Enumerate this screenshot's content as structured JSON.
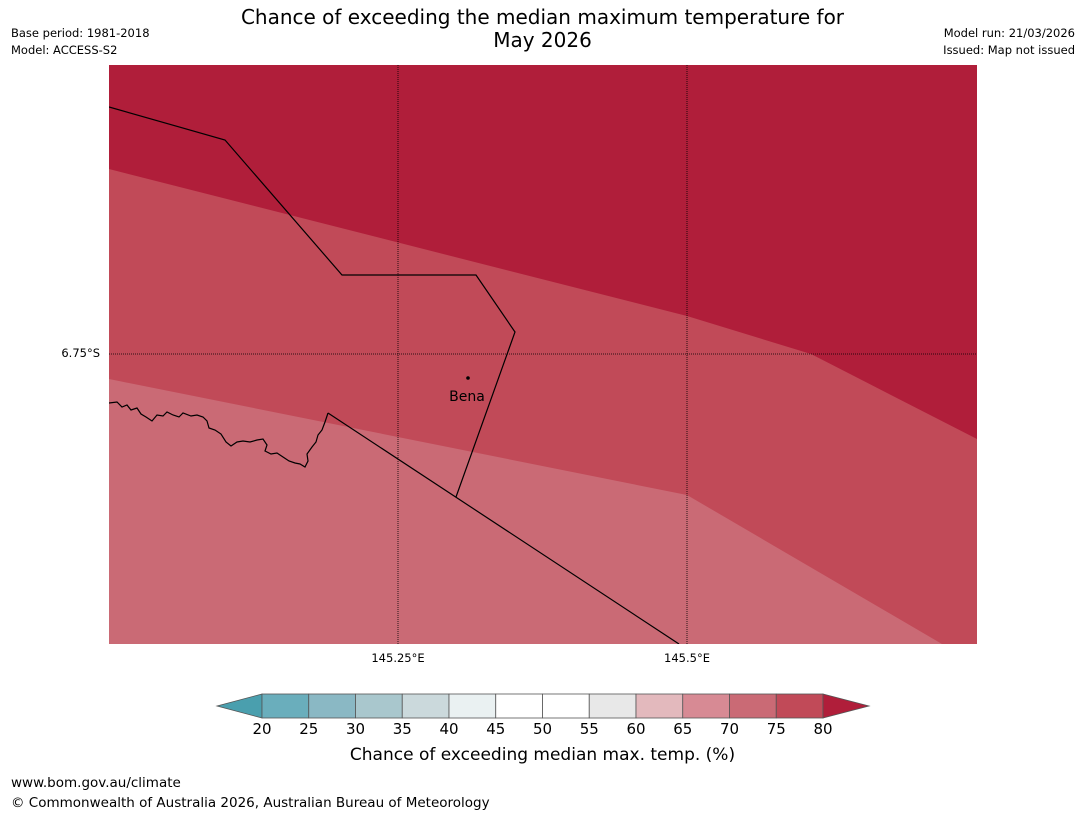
{
  "header": {
    "title_line1": "Chance of exceeding the median maximum temperature for",
    "title_line2": "May 2026",
    "base_period": "Base period: 1981-2018",
    "model": "Model: ACCESS-S2",
    "model_run": "Model run: 21/03/2026",
    "issued": "Issued: Map not issued"
  },
  "map": {
    "place_name": "Bena",
    "lat_label": "6.75°S",
    "lon_labels": [
      "145.25°E",
      "145.5°E"
    ],
    "colors": {
      "band_75_80": "#b01e3a",
      "band_70_75": "#c14a58",
      "band_65_70": "#ca6a75",
      "boundary": "#000000"
    }
  },
  "legend": {
    "ticks": [
      "20",
      "25",
      "30",
      "35",
      "40",
      "45",
      "50",
      "55",
      "60",
      "65",
      "70",
      "75",
      "80"
    ],
    "colors": [
      "#4a9fae",
      "#6aaebc",
      "#8ab8c4",
      "#a9c7cd",
      "#cbd9dc",
      "#eaf1f2",
      "#ffffff",
      "#ffffff",
      "#e8e8e8",
      "#e3b9bd",
      "#d78a94",
      "#ca6a75",
      "#c14a58",
      "#b01e3a"
    ],
    "label": "Chance of exceeding median max. temp. (%)"
  },
  "footer": {
    "website": "www.bom.gov.au/climate",
    "copyright": "© Commonwealth of Australia 2026, Australian Bureau of Meteorology"
  }
}
